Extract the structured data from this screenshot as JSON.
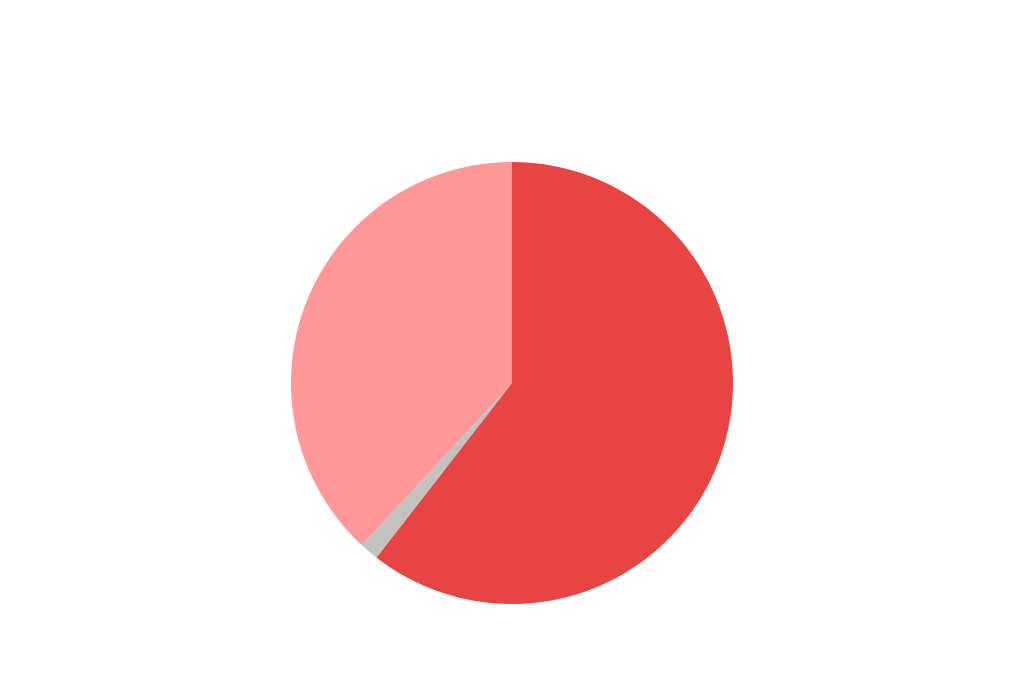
{
  "chart_data": {
    "type": "pie",
    "start_angle": "top",
    "direction": "clockwise",
    "slices": [
      {
        "value": 60.5,
        "color": "#e84444"
      },
      {
        "value": 1.4,
        "color": "#c4c2bf"
      },
      {
        "value": 38.1,
        "color": "#fe9898"
      }
    ],
    "title": "",
    "legend": "none"
  }
}
